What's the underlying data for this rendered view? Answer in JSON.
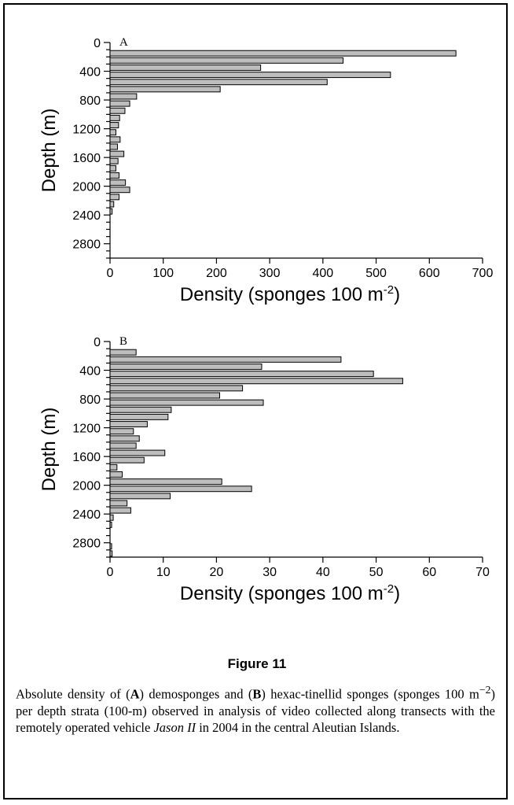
{
  "chart_data": [
    {
      "type": "bar",
      "panel": "A",
      "orientation": "horizontal",
      "xlabel": "Density (sponges 100 m",
      "xlabel_sup": "-2",
      "xlabel_close": ")",
      "ylabel": "Depth (m)",
      "xlim": [
        0,
        700
      ],
      "xticks": [
        0,
        100,
        200,
        300,
        400,
        500,
        600,
        700
      ],
      "ylim": [
        0,
        3000
      ],
      "yticks": [
        0,
        400,
        800,
        1200,
        1600,
        2000,
        2400,
        2800
      ],
      "y_inverted": true,
      "depth_bins_start": [
        100,
        200,
        300,
        400,
        500,
        600,
        700,
        800,
        900,
        1000,
        1100,
        1200,
        1300,
        1400,
        1500,
        1600,
        1700,
        1800,
        1900,
        2000,
        2100,
        2200,
        2300
      ],
      "values": [
        650,
        438,
        283,
        527,
        408,
        207,
        50,
        37,
        28,
        18,
        16,
        11,
        19,
        14,
        26,
        15,
        11,
        17,
        29,
        37,
        17,
        7,
        4
      ]
    },
    {
      "type": "bar",
      "panel": "B",
      "orientation": "horizontal",
      "xlabel": "Density (sponges 100 m",
      "xlabel_sup": "-2",
      "xlabel_close": ")",
      "ylabel": "Depth (m)",
      "xlim": [
        0,
        70
      ],
      "xticks": [
        0,
        10,
        20,
        30,
        40,
        50,
        60,
        70
      ],
      "ylim": [
        0,
        3000
      ],
      "yticks": [
        0,
        400,
        800,
        1200,
        1600,
        2000,
        2400,
        2800
      ],
      "y_inverted": true,
      "depth_bins_start": [
        100,
        200,
        300,
        400,
        500,
        600,
        700,
        800,
        900,
        1000,
        1100,
        1200,
        1300,
        1400,
        1500,
        1600,
        1700,
        1800,
        1900,
        2000,
        2100,
        2200,
        2300,
        2400,
        2500,
        2600,
        2700,
        2800,
        2900
      ],
      "values": [
        4.9,
        43.4,
        28.5,
        49.5,
        55.0,
        24.9,
        20.6,
        28.8,
        11.5,
        10.9,
        7.0,
        4.4,
        5.5,
        4.9,
        10.3,
        6.4,
        1.3,
        2.3,
        21.0,
        26.6,
        11.3,
        3.2,
        3.9,
        0.6,
        0.3,
        0.0,
        0.0,
        0.3,
        0.4
      ]
    }
  ],
  "caption": {
    "title": "Figure 11",
    "p1": "Absolute density of (",
    "a": "A",
    "p2": ") demosponges and (",
    "b": "B",
    "p3": ") hexac-tinellid sponges (sponges 100 m",
    "sup": "−2",
    "p4": ") per depth strata (100-m) observed in analysis of video collected along transects with the remotely operated vehicle ",
    "vehicle": "Jason II",
    "p5": " in 2004 in the central Aleutian Islands."
  }
}
